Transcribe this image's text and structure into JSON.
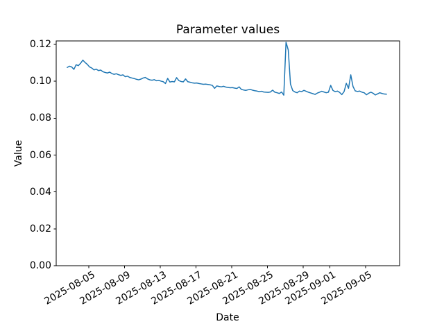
{
  "figure": {
    "title": "Parameter values",
    "xlabel": "Date",
    "ylabel": "Value",
    "background_color": "#ffffff",
    "spine_color": "#000000"
  },
  "chart_data": {
    "type": "line",
    "title": "Parameter values",
    "xlabel": "Date",
    "ylabel": "Value",
    "grid": false,
    "legend": null,
    "line_color": "#1f77b4",
    "line_width": 1.5,
    "x_origin": "2025-08-05",
    "x_start_offset_days": -2.4167,
    "x_step_days": 0.25,
    "xlim_days": [
      -3.65,
      34.8
    ],
    "ylim": [
      0,
      0.1219
    ],
    "yticks": [
      0.0,
      0.02,
      0.04,
      0.06,
      0.08,
      0.1,
      0.12
    ],
    "ytick_labels": [
      "0.00",
      "0.02",
      "0.04",
      "0.06",
      "0.08",
      "0.10",
      "0.12"
    ],
    "xticks_days": [
      0,
      4,
      8,
      12,
      16,
      20,
      24,
      27,
      31
    ],
    "xtick_labels": [
      "2025-08-05",
      "2025-08-09",
      "2025-08-13",
      "2025-08-17",
      "2025-08-21",
      "2025-08-25",
      "2025-08-29",
      "2025-09-01",
      "2025-09-05"
    ],
    "values": [
      0.1075,
      0.1082,
      0.1078,
      0.1065,
      0.109,
      0.1085,
      0.1098,
      0.1115,
      0.1102,
      0.1092,
      0.1078,
      0.1072,
      0.1062,
      0.1066,
      0.1058,
      0.1061,
      0.1052,
      0.1048,
      0.1045,
      0.105,
      0.1042,
      0.1038,
      0.1041,
      0.1036,
      0.1032,
      0.1035,
      0.1025,
      0.1028,
      0.1021,
      0.1018,
      0.1015,
      0.1011,
      0.1008,
      0.1012,
      0.1018,
      0.1021,
      0.1013,
      0.1008,
      0.1006,
      0.1009,
      0.1003,
      0.1005,
      0.1001,
      0.0998,
      0.0988,
      0.1016,
      0.0996,
      0.0999,
      0.0997,
      0.102,
      0.1004,
      0.0999,
      0.0997,
      0.1013,
      0.0998,
      0.0995,
      0.0992,
      0.099,
      0.0991,
      0.0988,
      0.0986,
      0.0984,
      0.0985,
      0.0983,
      0.0981,
      0.0978,
      0.0962,
      0.0975,
      0.0972,
      0.097,
      0.0973,
      0.0969,
      0.0967,
      0.0965,
      0.0966,
      0.0963,
      0.0961,
      0.097,
      0.0956,
      0.0953,
      0.0951,
      0.0954,
      0.0956,
      0.0952,
      0.0949,
      0.0947,
      0.0944,
      0.0946,
      0.0942,
      0.0941,
      0.094,
      0.0942,
      0.0952,
      0.0941,
      0.0938,
      0.0934,
      0.0942,
      0.0925,
      0.1212,
      0.117,
      0.0985,
      0.095,
      0.0942,
      0.0938,
      0.0947,
      0.0944,
      0.0951,
      0.0946,
      0.0941,
      0.0937,
      0.0933,
      0.0929,
      0.0936,
      0.0941,
      0.0946,
      0.0942,
      0.0938,
      0.0941,
      0.0978,
      0.0951,
      0.0944,
      0.0947,
      0.094,
      0.0928,
      0.0944,
      0.0989,
      0.0962,
      0.1035,
      0.0972,
      0.0948,
      0.0945,
      0.0947,
      0.0941,
      0.0938,
      0.0927,
      0.0935,
      0.0941,
      0.0935,
      0.0926,
      0.0932,
      0.0938,
      0.0934,
      0.0931,
      0.093
    ]
  }
}
